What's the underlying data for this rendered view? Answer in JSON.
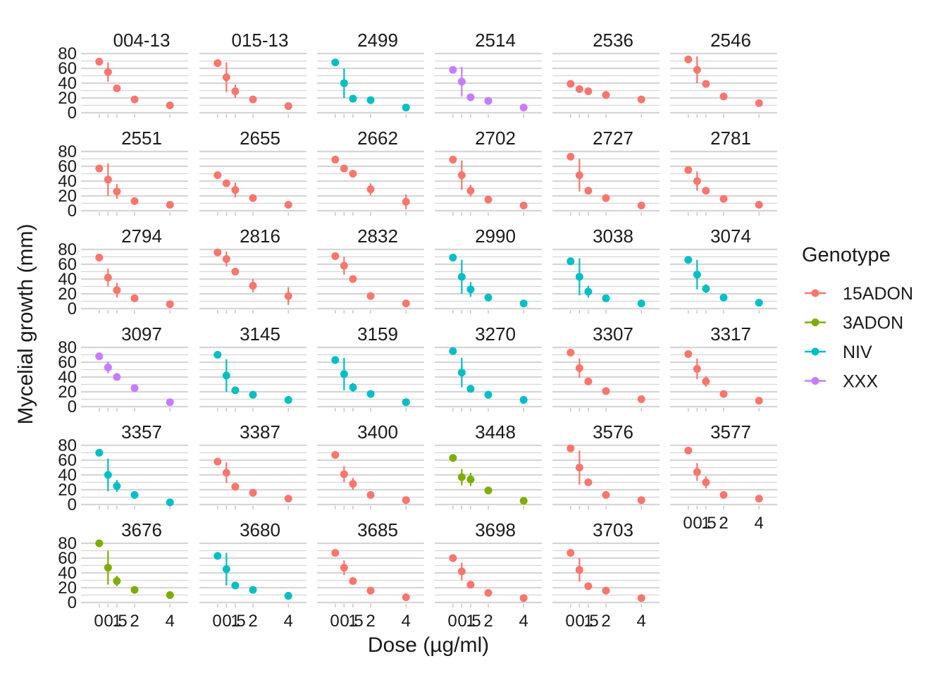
{
  "chart_data": {
    "type": "scatter",
    "facet": "small-multiples",
    "xlabel": "Dose (µg/ml)",
    "ylabel": "Mycelial growth (mm)",
    "x": [
      0,
      0.5,
      1,
      2,
      4
    ],
    "x_tick_labels": [
      "0",
      "0.5",
      "1",
      "2",
      "4"
    ],
    "y_ticks": [
      "0",
      "20",
      "40",
      "60",
      "80"
    ],
    "ylim": [
      0,
      80
    ],
    "grid": true,
    "legend": {
      "title": "Genotype",
      "position": "right",
      "entries": [
        {
          "name": "15ADON",
          "color": "#F8766D"
        },
        {
          "name": "3ADON",
          "color": "#7CAE00"
        },
        {
          "name": "NIV",
          "color": "#00BFC4"
        },
        {
          "name": "XXX",
          "color": "#C77CFF"
        }
      ]
    },
    "panels": [
      {
        "id": "004-13",
        "genotype": "15ADON",
        "values": [
          69,
          55,
          33,
          18,
          10
        ],
        "errors": [
          0,
          13,
          0,
          0,
          0
        ]
      },
      {
        "id": "015-13",
        "genotype": "15ADON",
        "values": [
          67,
          48,
          29,
          18,
          9
        ],
        "errors": [
          0,
          20,
          9,
          0,
          0
        ]
      },
      {
        "id": "2499",
        "genotype": "NIV",
        "values": [
          68,
          40,
          19,
          17,
          7
        ],
        "errors": [
          0,
          20,
          0,
          0,
          0
        ]
      },
      {
        "id": "2514",
        "genotype": "XXX",
        "values": [
          58,
          42,
          21,
          16,
          7
        ],
        "errors": [
          0,
          20,
          0,
          0,
          0
        ]
      },
      {
        "id": "2536",
        "genotype": "15ADON",
        "values": [
          39,
          32,
          29,
          24,
          18
        ],
        "errors": [
          0,
          0,
          0,
          0,
          0
        ]
      },
      {
        "id": "2546",
        "genotype": "15ADON",
        "values": [
          72,
          58,
          39,
          22,
          13
        ],
        "errors": [
          0,
          18,
          0,
          0,
          0
        ]
      },
      {
        "id": "2551",
        "genotype": "15ADON",
        "values": [
          57,
          42,
          26,
          13,
          8
        ],
        "errors": [
          0,
          22,
          10,
          0,
          0
        ]
      },
      {
        "id": "2655",
        "genotype": "15ADON",
        "values": [
          48,
          37,
          28,
          17,
          8
        ],
        "errors": [
          0,
          0,
          10,
          0,
          0
        ]
      },
      {
        "id": "2662",
        "genotype": "15ADON",
        "values": [
          69,
          57,
          50,
          29,
          12
        ],
        "errors": [
          0,
          0,
          0,
          8,
          10
        ]
      },
      {
        "id": "2702",
        "genotype": "15ADON",
        "values": [
          69,
          48,
          27,
          15,
          7
        ],
        "errors": [
          0,
          20,
          8,
          0,
          0
        ]
      },
      {
        "id": "2727",
        "genotype": "15ADON",
        "values": [
          73,
          48,
          27,
          17,
          7
        ],
        "errors": [
          0,
          22,
          0,
          0,
          0
        ]
      },
      {
        "id": "2781",
        "genotype": "15ADON",
        "values": [
          55,
          40,
          27,
          16,
          8
        ],
        "errors": [
          0,
          13,
          0,
          0,
          0
        ]
      },
      {
        "id": "2794",
        "genotype": "15ADON",
        "values": [
          69,
          42,
          25,
          14,
          6
        ],
        "errors": [
          0,
          12,
          10,
          0,
          0
        ]
      },
      {
        "id": "2816",
        "genotype": "15ADON",
        "values": [
          76,
          67,
          50,
          31,
          17
        ],
        "errors": [
          0,
          10,
          0,
          9,
          12
        ]
      },
      {
        "id": "2832",
        "genotype": "15ADON",
        "values": [
          71,
          58,
          40,
          17,
          7
        ],
        "errors": [
          0,
          12,
          0,
          0,
          0
        ]
      },
      {
        "id": "2990",
        "genotype": "NIV",
        "values": [
          69,
          43,
          26,
          15,
          7
        ],
        "errors": [
          0,
          23,
          10,
          0,
          0
        ]
      },
      {
        "id": "3038",
        "genotype": "NIV",
        "values": [
          64,
          43,
          23,
          14,
          7
        ],
        "errors": [
          0,
          25,
          8,
          0,
          0
        ]
      },
      {
        "id": "3074",
        "genotype": "NIV",
        "values": [
          66,
          46,
          27,
          15,
          8
        ],
        "errors": [
          0,
          20,
          6,
          0,
          0
        ]
      },
      {
        "id": "3097",
        "genotype": "XXX",
        "values": [
          68,
          53,
          40,
          25,
          6
        ],
        "errors": [
          0,
          8,
          0,
          0,
          0
        ]
      },
      {
        "id": "3145",
        "genotype": "NIV",
        "values": [
          70,
          42,
          22,
          16,
          9
        ],
        "errors": [
          0,
          22,
          0,
          0,
          0
        ]
      },
      {
        "id": "3159",
        "genotype": "NIV",
        "values": [
          63,
          44,
          26,
          17,
          6
        ],
        "errors": [
          0,
          22,
          6,
          0,
          0
        ]
      },
      {
        "id": "3270",
        "genotype": "NIV",
        "values": [
          75,
          46,
          24,
          16,
          9
        ],
        "errors": [
          0,
          20,
          0,
          0,
          0
        ]
      },
      {
        "id": "3307",
        "genotype": "15ADON",
        "values": [
          73,
          52,
          34,
          21,
          10
        ],
        "errors": [
          0,
          13,
          0,
          0,
          0
        ]
      },
      {
        "id": "3317",
        "genotype": "15ADON",
        "values": [
          71,
          51,
          34,
          17,
          8
        ],
        "errors": [
          0,
          14,
          7,
          0,
          0
        ]
      },
      {
        "id": "3357",
        "genotype": "NIV",
        "values": [
          70,
          40,
          25,
          13,
          3
        ],
        "errors": [
          0,
          22,
          8,
          0,
          0
        ]
      },
      {
        "id": "3387",
        "genotype": "15ADON",
        "values": [
          58,
          43,
          24,
          16,
          8
        ],
        "errors": [
          0,
          14,
          0,
          0,
          0
        ]
      },
      {
        "id": "3400",
        "genotype": "15ADON",
        "values": [
          67,
          41,
          28,
          13,
          6
        ],
        "errors": [
          0,
          11,
          8,
          0,
          0
        ]
      },
      {
        "id": "3448",
        "genotype": "3ADON",
        "values": [
          63,
          37,
          34,
          19,
          5
        ],
        "errors": [
          0,
          11,
          9,
          0,
          0
        ]
      },
      {
        "id": "3576",
        "genotype": "15ADON",
        "values": [
          76,
          50,
          30,
          13,
          6
        ],
        "errors": [
          0,
          23,
          0,
          0,
          0
        ]
      },
      {
        "id": "3577",
        "genotype": "15ADON",
        "values": [
          73,
          44,
          30,
          13,
          8
        ],
        "errors": [
          0,
          12,
          8,
          0,
          0
        ]
      },
      {
        "id": "3676",
        "genotype": "3ADON",
        "values": [
          80,
          47,
          29,
          17,
          10
        ],
        "errors": [
          0,
          23,
          7,
          0,
          0
        ]
      },
      {
        "id": "3680",
        "genotype": "NIV",
        "values": [
          63,
          45,
          23,
          17,
          9
        ],
        "errors": [
          0,
          22,
          0,
          0,
          0
        ]
      },
      {
        "id": "3685",
        "genotype": "15ADON",
        "values": [
          67,
          47,
          29,
          16,
          7
        ],
        "errors": [
          0,
          10,
          0,
          0,
          0
        ]
      },
      {
        "id": "3698",
        "genotype": "15ADON",
        "values": [
          60,
          42,
          24,
          13,
          6
        ],
        "errors": [
          0,
          12,
          0,
          0,
          0
        ]
      },
      {
        "id": "3703",
        "genotype": "15ADON",
        "values": [
          67,
          44,
          22,
          16,
          6
        ],
        "errors": [
          0,
          16,
          0,
          0,
          0
        ]
      }
    ]
  }
}
